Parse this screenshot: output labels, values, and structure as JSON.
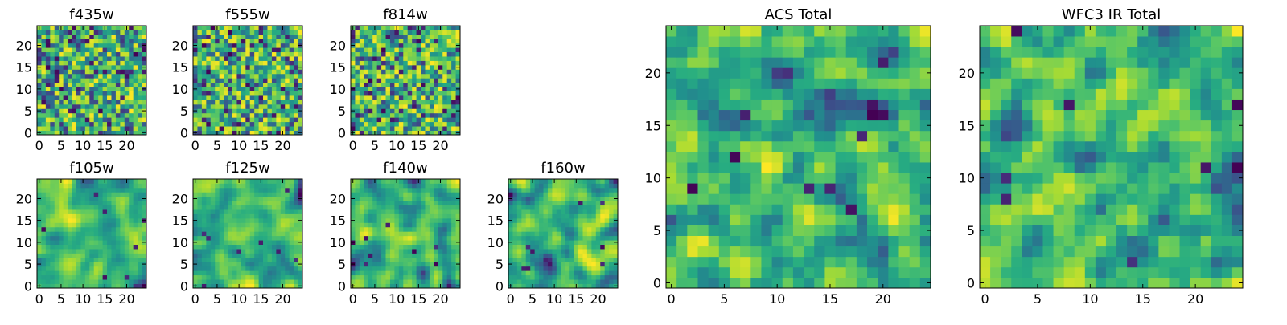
{
  "chart_data": [
    {
      "type": "heatmap",
      "title": "f435w",
      "xticks": [
        0,
        5,
        10,
        15,
        20
      ],
      "yticks": [
        0,
        5,
        10,
        15,
        20
      ],
      "xlim": [
        -0.5,
        24.5
      ],
      "ylim": [
        -0.5,
        24.5
      ],
      "grid": false,
      "colormap": "viridis",
      "smoothness": "noisy",
      "seed": 11
    },
    {
      "type": "heatmap",
      "title": "f555w",
      "xticks": [
        0,
        5,
        10,
        15,
        20
      ],
      "yticks": [
        0,
        5,
        10,
        15,
        20
      ],
      "xlim": [
        -0.5,
        24.5
      ],
      "ylim": [
        -0.5,
        24.5
      ],
      "grid": false,
      "colormap": "viridis",
      "smoothness": "noisy",
      "seed": 23
    },
    {
      "type": "heatmap",
      "title": "f814w",
      "xticks": [
        0,
        5,
        10,
        15,
        20
      ],
      "yticks": [
        0,
        5,
        10,
        15,
        20
      ],
      "xlim": [
        -0.5,
        24.5
      ],
      "ylim": [
        -0.5,
        24.5
      ],
      "grid": false,
      "colormap": "viridis",
      "smoothness": "noisy",
      "seed": 37
    },
    {
      "type": "heatmap",
      "title": "f105w",
      "xticks": [
        0,
        5,
        10,
        15,
        20
      ],
      "yticks": [
        0,
        5,
        10,
        15,
        20
      ],
      "xlim": [
        -0.5,
        24.5
      ],
      "ylim": [
        -0.5,
        24.5
      ],
      "grid": false,
      "colormap": "viridis",
      "smoothness": "smooth",
      "seed": 41
    },
    {
      "type": "heatmap",
      "title": "f125w",
      "xticks": [
        0,
        5,
        10,
        15,
        20
      ],
      "yticks": [
        0,
        5,
        10,
        15,
        20
      ],
      "xlim": [
        -0.5,
        24.5
      ],
      "ylim": [
        -0.5,
        24.5
      ],
      "grid": false,
      "colormap": "viridis",
      "smoothness": "smooth",
      "seed": 53
    },
    {
      "type": "heatmap",
      "title": "f140w",
      "xticks": [
        0,
        5,
        10,
        15,
        20
      ],
      "yticks": [
        0,
        5,
        10,
        15,
        20
      ],
      "xlim": [
        -0.5,
        24.5
      ],
      "ylim": [
        -0.5,
        24.5
      ],
      "grid": false,
      "colormap": "viridis",
      "smoothness": "smooth",
      "seed": 67
    },
    {
      "type": "heatmap",
      "title": "f160w",
      "xticks": [
        0,
        5,
        10,
        15,
        20
      ],
      "yticks": [
        0,
        5,
        10,
        15,
        20
      ],
      "xlim": [
        -0.5,
        24.5
      ],
      "ylim": [
        -0.5,
        24.5
      ],
      "grid": false,
      "colormap": "viridis",
      "smoothness": "smooth",
      "seed": 79
    },
    {
      "type": "heatmap",
      "title": "ACS Total",
      "xticks": [
        0,
        5,
        10,
        15,
        20
      ],
      "yticks": [
        0,
        5,
        10,
        15,
        20
      ],
      "xlim": [
        -0.5,
        24.5
      ],
      "ylim": [
        -0.5,
        24.5
      ],
      "grid": false,
      "colormap": "viridis",
      "smoothness": "medium",
      "seed": 97
    },
    {
      "type": "heatmap",
      "title": "WFC3 IR Total",
      "xticks": [
        0,
        5,
        10,
        15,
        20
      ],
      "yticks": [
        0,
        5,
        10,
        15,
        20
      ],
      "xlim": [
        -0.5,
        24.5
      ],
      "ylim": [
        -0.5,
        24.5
      ],
      "grid": false,
      "colormap": "viridis",
      "smoothness": "medium",
      "seed": 113
    }
  ]
}
